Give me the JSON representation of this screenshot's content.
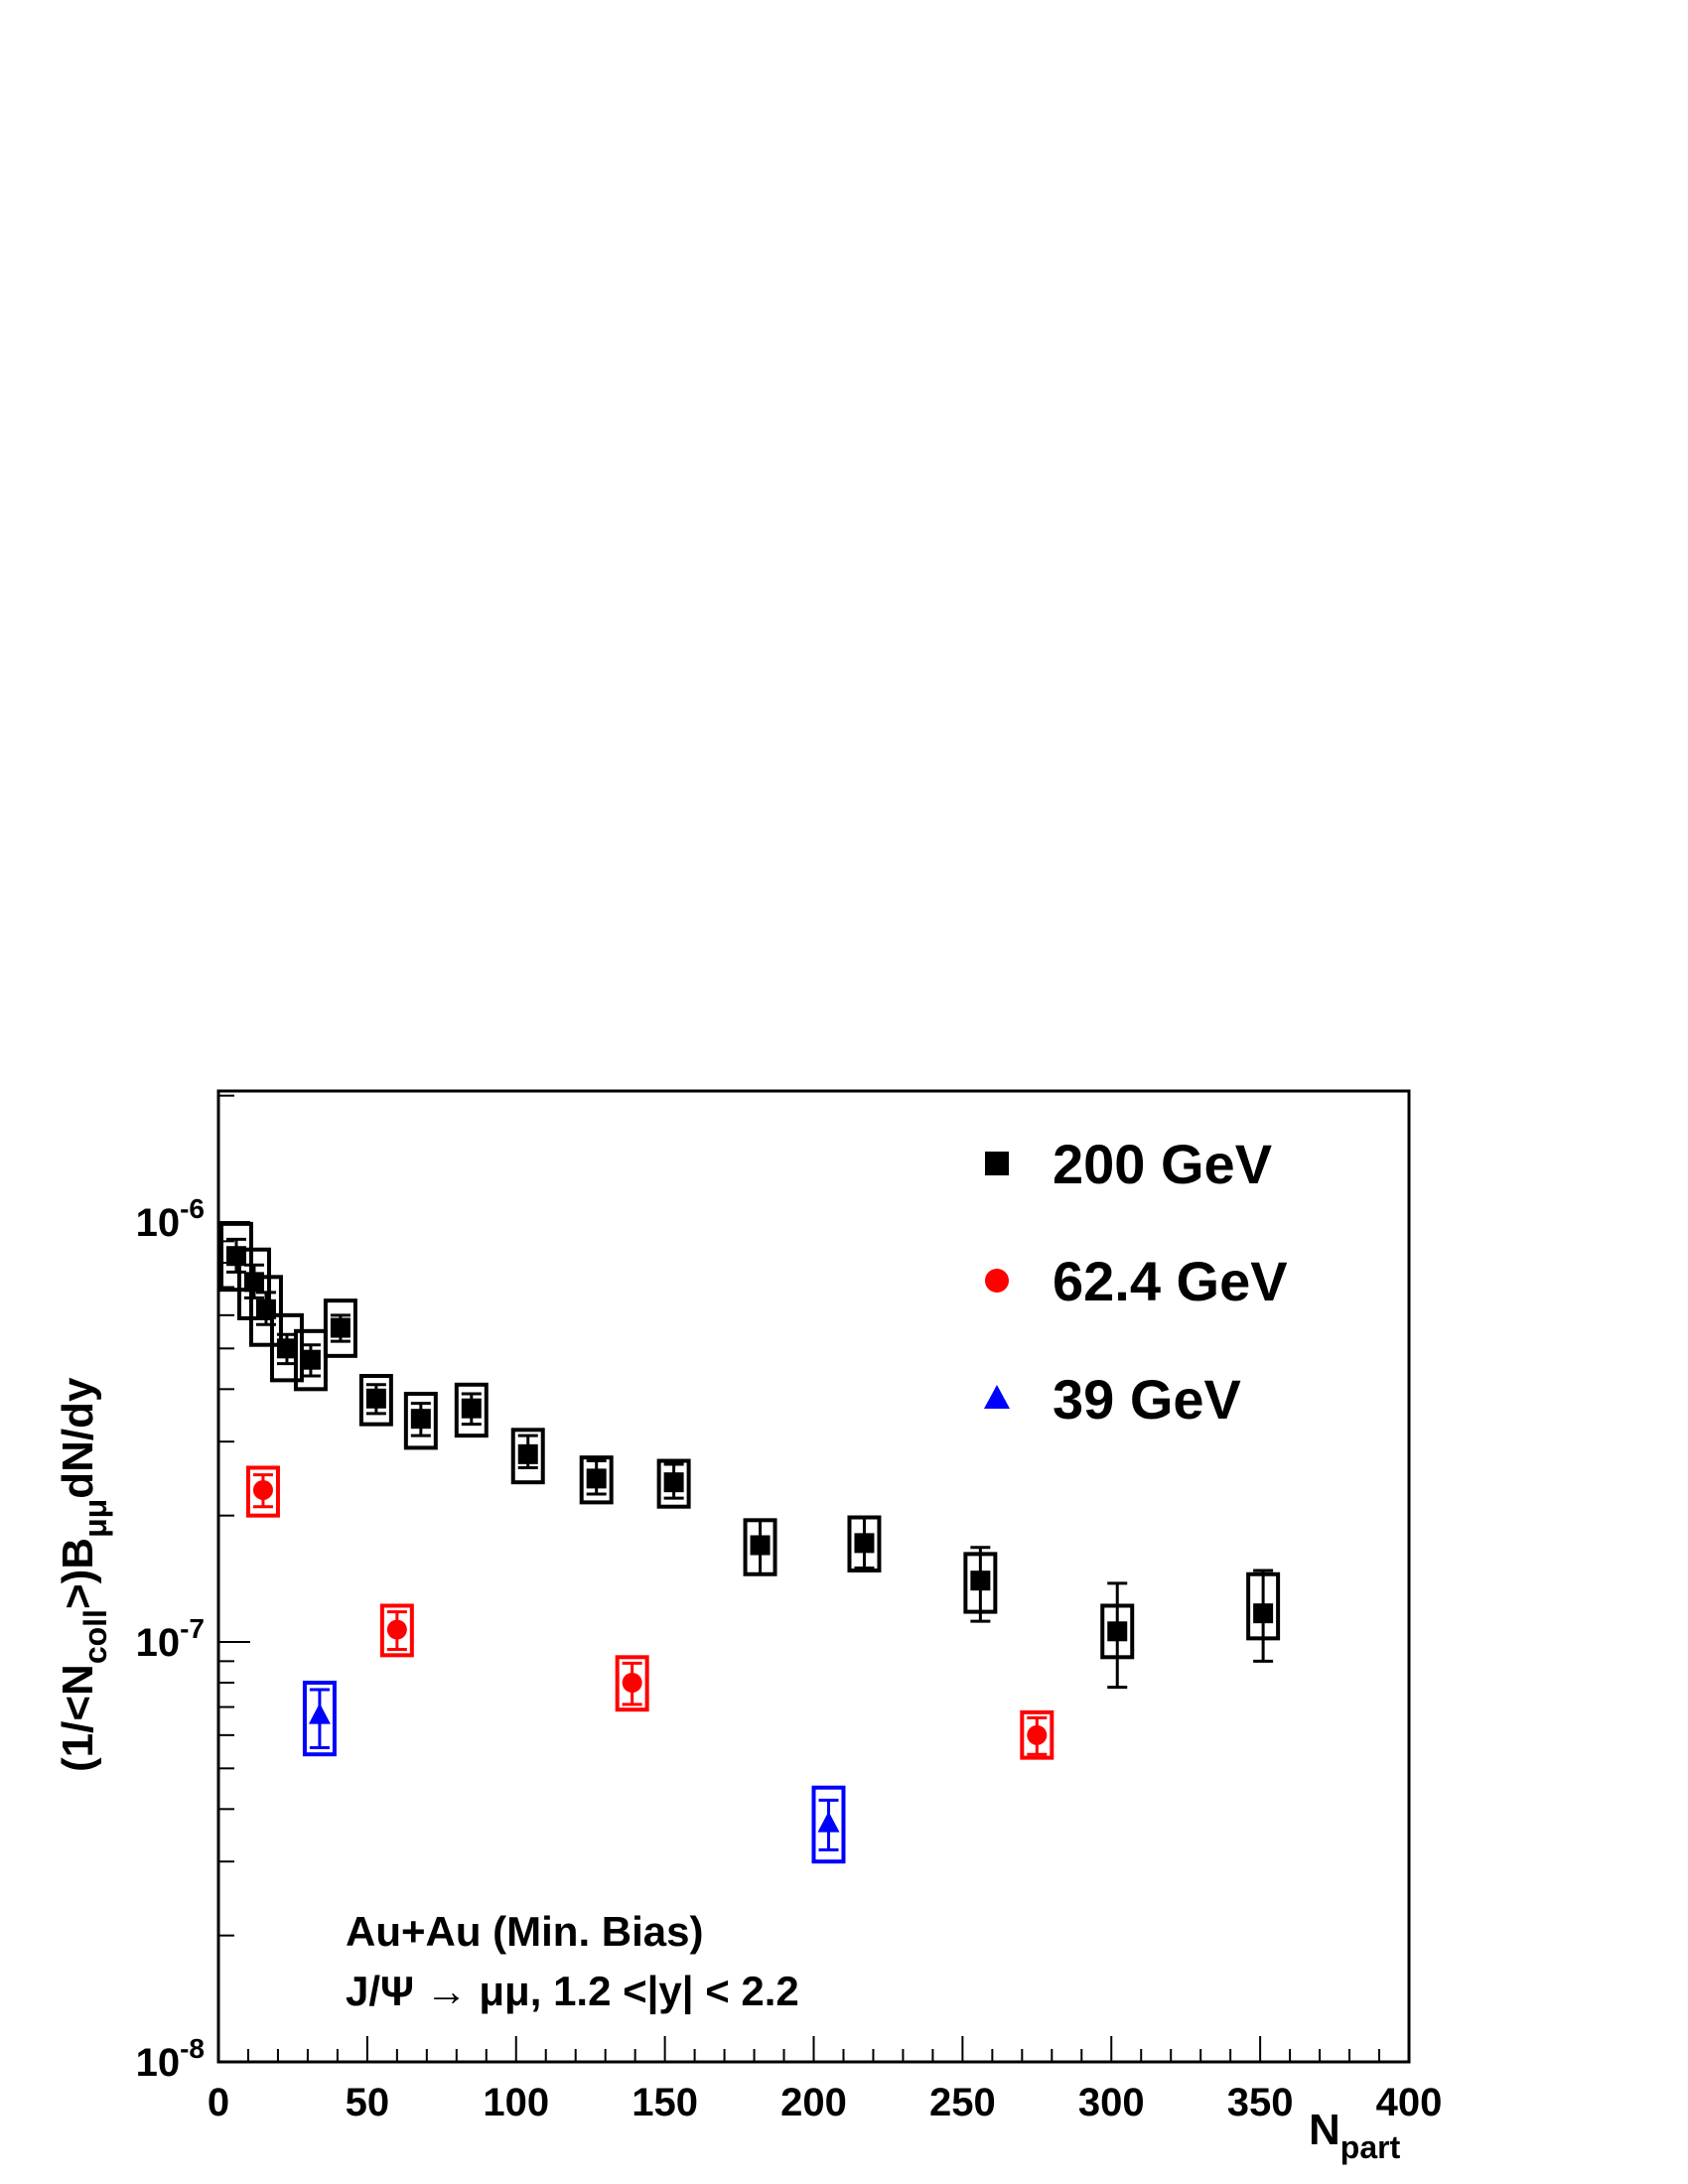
{
  "chart_data": {
    "type": "scatter",
    "xlabel": "N",
    "xlabel_sub": "part",
    "ylabel_parts": [
      "(1/<N",
      "coll",
      ">)B",
      "μμ",
      "dN/dy"
    ],
    "x_range": [
      0,
      400
    ],
    "y_range": [
      1e-08,
      2e-06
    ],
    "y_scale": "log",
    "grid": false,
    "legend_position": "top-right",
    "x_ticks": [
      {
        "value": 0,
        "label": "0"
      },
      {
        "value": 50,
        "label": "50"
      },
      {
        "value": 100,
        "label": "100"
      },
      {
        "value": 150,
        "label": "150"
      },
      {
        "value": 200,
        "label": "200"
      },
      {
        "value": 250,
        "label": "250"
      },
      {
        "value": 300,
        "label": "300"
      },
      {
        "value": 350,
        "label": "350"
      },
      {
        "value": 400,
        "label": "400"
      }
    ],
    "y_ticks": [
      {
        "value": 1e-08,
        "base": "10",
        "exp": "-8"
      },
      {
        "value": 1e-07,
        "base": "10",
        "exp": "-7"
      },
      {
        "value": 1e-06,
        "base": "10",
        "exp": "-6"
      }
    ],
    "series": [
      {
        "name": "200 GeV",
        "marker": "square",
        "color": "#000000",
        "points": [
          {
            "x": 6,
            "y": 8.3e-07,
            "stat": [
              7.6e-07,
              9.1e-07
            ],
            "sys": [
              6.9e-07,
              9.9e-07
            ],
            "box_hw": 5
          },
          {
            "x": 12,
            "y": 7.2e-07,
            "stat": [
              6.6e-07,
              7.9e-07
            ],
            "sys": [
              5.9e-07,
              8.6e-07
            ],
            "box_hw": 5
          },
          {
            "x": 16,
            "y": 6.2e-07,
            "stat": [
              5.7e-07,
              6.8e-07
            ],
            "sys": [
              5.1e-07,
              7.4e-07
            ],
            "box_hw": 5
          },
          {
            "x": 23,
            "y": 5e-07,
            "stat": [
              4.6e-07,
              5.4e-07
            ],
            "sys": [
              4.2e-07,
              6e-07
            ],
            "box_hw": 5
          },
          {
            "x": 31,
            "y": 4.7e-07,
            "stat": [
              4.3e-07,
              5.1e-07
            ],
            "sys": [
              4e-07,
              5.5e-07
            ],
            "box_hw": 5
          },
          {
            "x": 41,
            "y": 5.6e-07,
            "stat": [
              5.2e-07,
              6e-07
            ],
            "sys": [
              4.8e-07,
              6.5e-07
            ],
            "box_hw": 5
          },
          {
            "x": 53,
            "y": 3.8e-07,
            "stat": [
              3.5e-07,
              4.1e-07
            ],
            "sys": [
              3.3e-07,
              4.3e-07
            ],
            "box_hw": 5
          },
          {
            "x": 68,
            "y": 3.4e-07,
            "stat": [
              3.1e-07,
              3.7e-07
            ],
            "sys": [
              2.9e-07,
              3.9e-07
            ],
            "box_hw": 5
          },
          {
            "x": 85,
            "y": 3.6e-07,
            "stat": [
              3.3e-07,
              3.9e-07
            ],
            "sys": [
              3.1e-07,
              4.1e-07
            ],
            "box_hw": 5
          },
          {
            "x": 104,
            "y": 2.8e-07,
            "stat": [
              2.6e-07,
              3.1e-07
            ],
            "sys": [
              2.4e-07,
              3.2e-07
            ],
            "box_hw": 5
          },
          {
            "x": 127,
            "y": 2.45e-07,
            "stat": [
              2.25e-07,
              2.7e-07
            ],
            "sys": [
              2.15e-07,
              2.75e-07
            ],
            "box_hw": 5
          },
          {
            "x": 153,
            "y": 2.4e-07,
            "stat": [
              2.2e-07,
              2.65e-07
            ],
            "sys": [
              2.1e-07,
              2.7e-07
            ],
            "box_hw": 5
          },
          {
            "x": 182,
            "y": 1.7e-07,
            "stat": [
              1.45e-07,
              1.95e-07
            ],
            "sys": [
              1.45e-07,
              1.95e-07
            ],
            "box_hw": 5
          },
          {
            "x": 217,
            "y": 1.72e-07,
            "stat": [
              1.5e-07,
              1.98e-07
            ],
            "sys": [
              1.48e-07,
              1.98e-07
            ],
            "box_hw": 5
          },
          {
            "x": 256,
            "y": 1.4e-07,
            "stat": [
              1.12e-07,
              1.68e-07
            ],
            "sys": [
              1.18e-07,
              1.62e-07
            ],
            "box_hw": 5
          },
          {
            "x": 302,
            "y": 1.06e-07,
            "stat": [
              7.8e-08,
              1.38e-07
            ],
            "sys": [
              9.2e-08,
              1.22e-07
            ],
            "box_hw": 5
          },
          {
            "x": 351,
            "y": 1.17e-07,
            "stat": [
              9e-08,
              1.48e-07
            ],
            "sys": [
              1.02e-07,
              1.45e-07
            ],
            "box_hw": 5
          }
        ]
      },
      {
        "name": "62.4 GeV",
        "marker": "circle",
        "color": "#ff0000",
        "points": [
          {
            "x": 15,
            "y": 2.3e-07,
            "stat": [
              2.1e-07,
              2.5e-07
            ],
            "sys": [
              2e-07,
              2.6e-07
            ],
            "box_hw": 5
          },
          {
            "x": 60,
            "y": 1.07e-07,
            "stat": [
              9.6e-08,
              1.18e-07
            ],
            "sys": [
              9.3e-08,
              1.22e-07
            ],
            "box_hw": 5
          },
          {
            "x": 139,
            "y": 8e-08,
            "stat": [
              7.1e-08,
              8.9e-08
            ],
            "sys": [
              6.9e-08,
              9.2e-08
            ],
            "box_hw": 5
          },
          {
            "x": 275,
            "y": 6e-08,
            "stat": [
              5.4e-08,
              6.6e-08
            ],
            "sys": [
              5.3e-08,
              6.8e-08
            ],
            "box_hw": 5
          }
        ]
      },
      {
        "name": "39 GeV",
        "marker": "triangle",
        "color": "#0000ff",
        "points": [
          {
            "x": 34,
            "y": 6.7e-08,
            "stat": [
              5.6e-08,
              7.7e-08
            ],
            "sys": [
              5.4e-08,
              8e-08
            ],
            "box_hw": 5
          },
          {
            "x": 205,
            "y": 3.7e-08,
            "stat": [
              3.2e-08,
              4.2e-08
            ],
            "sys": [
              3e-08,
              4.5e-08
            ],
            "box_hw": 5
          }
        ]
      }
    ],
    "annotations": [
      "Au+Au (Min. Bias)",
      "J/Ψ → μμ, 1.2 <|y| < 2.2"
    ]
  }
}
